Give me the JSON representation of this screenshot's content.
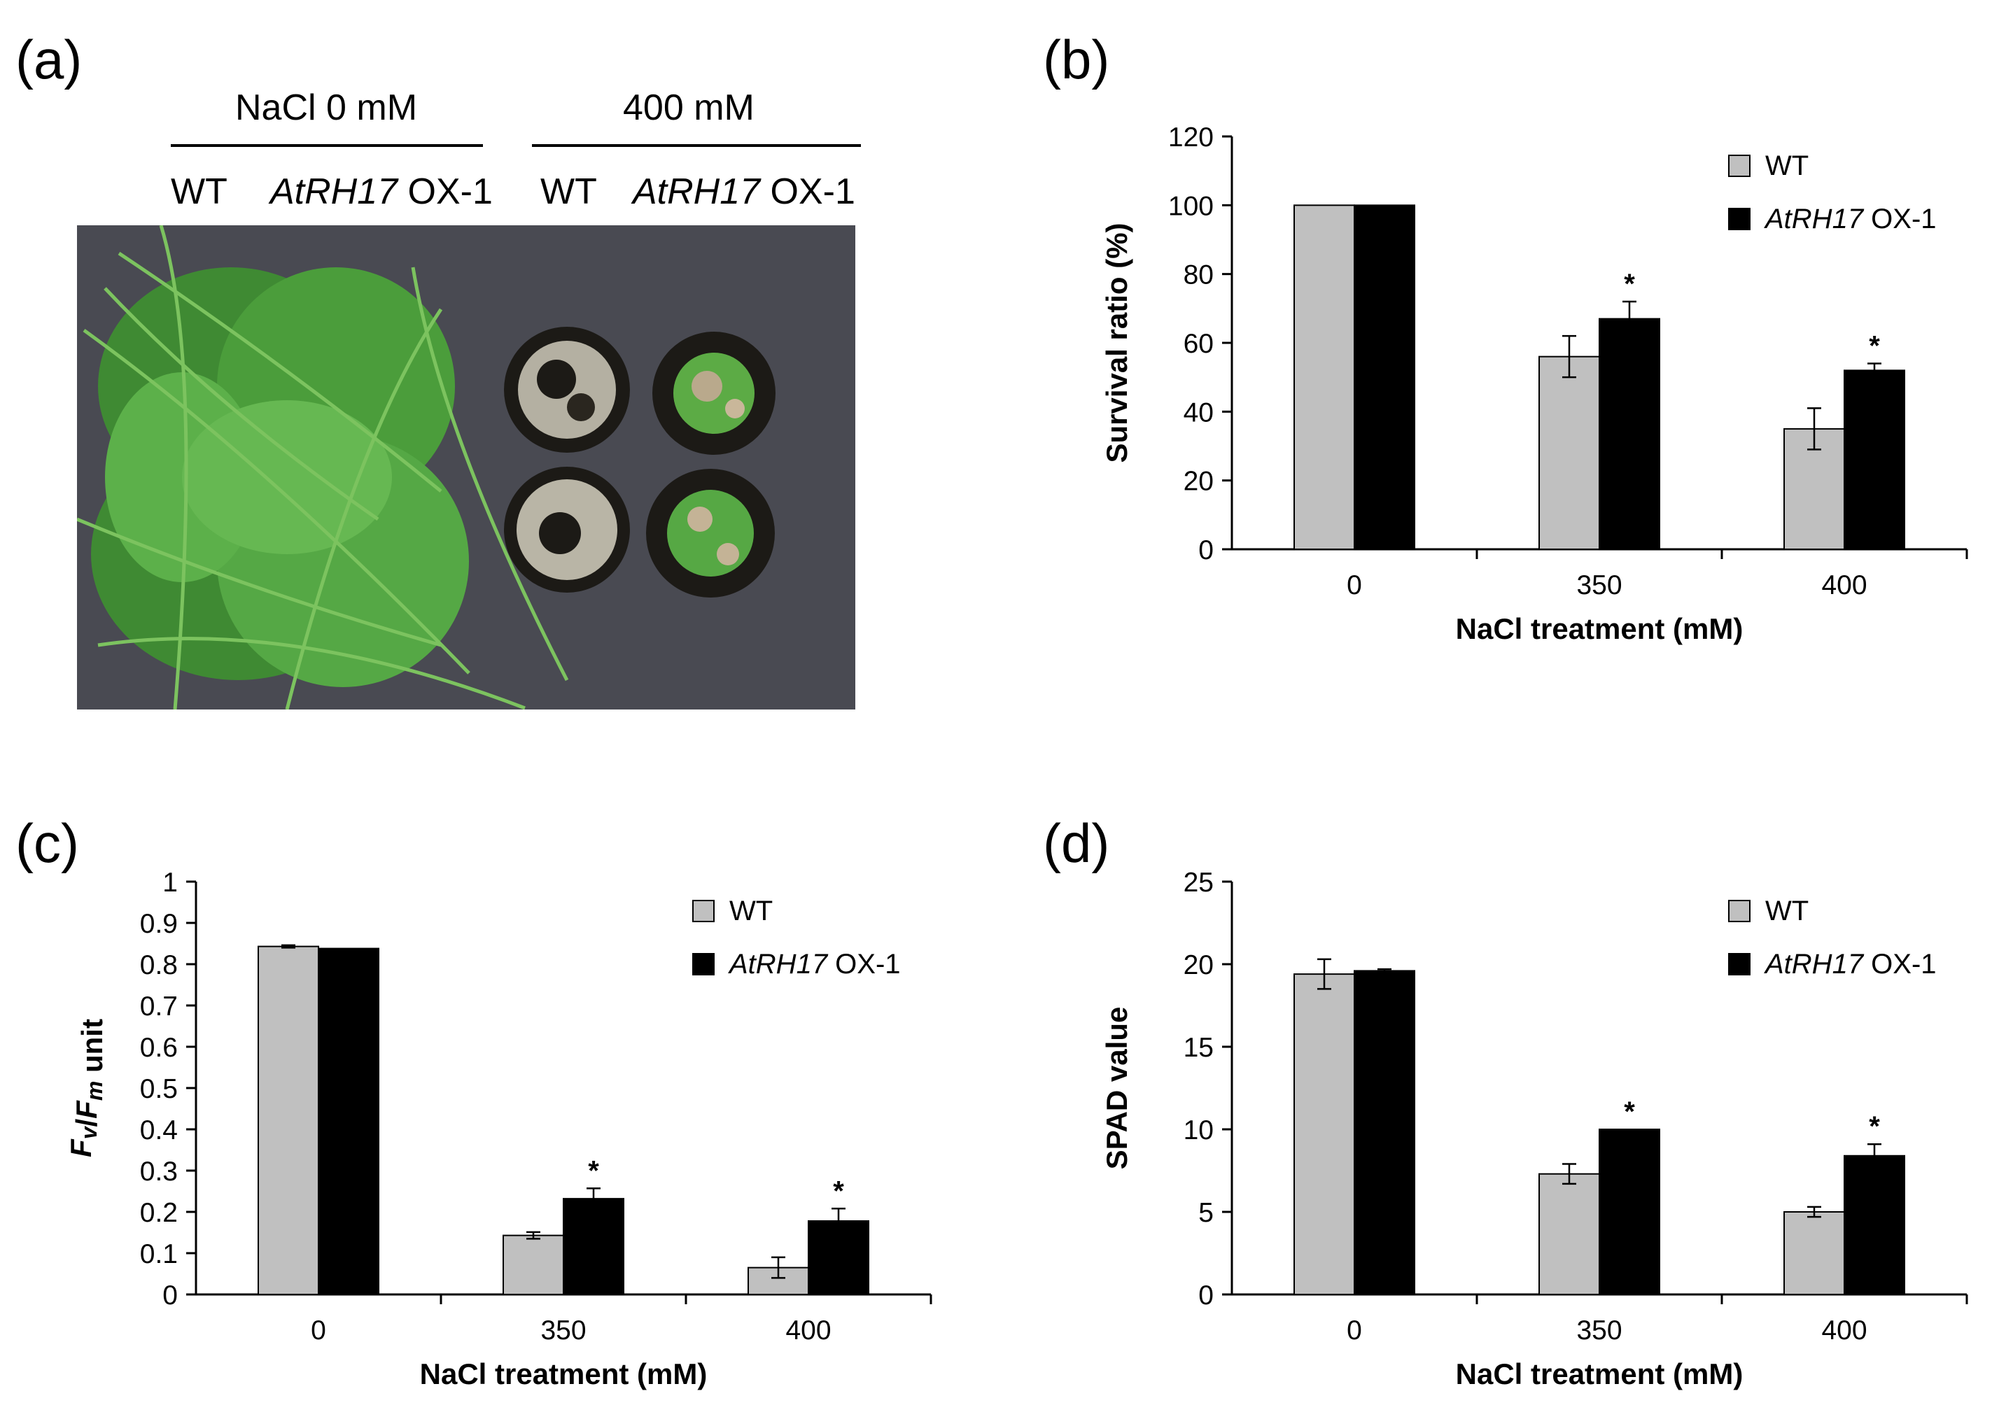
{
  "panels": {
    "a": {
      "label": "(a)",
      "group_left": "NaCl 0 mM",
      "group_right": "400 mM",
      "col_wt": "WT",
      "col_ox_italic": "AtRH17",
      "col_ox_suffix": " OX-1"
    },
    "b": {
      "label": "(b)"
    },
    "c": {
      "label": "(c)"
    },
    "d": {
      "label": "(d)"
    }
  },
  "colors": {
    "wt": "#c0c0c0",
    "ox": "#000000",
    "photo_bg": "#494a52",
    "plant": "#4d9a3a"
  },
  "chart_data": [
    {
      "id": "b",
      "type": "bar",
      "categories": [
        "0",
        "350",
        "400"
      ],
      "series": [
        {
          "name": "WT",
          "values": [
            100,
            56,
            35
          ],
          "errors": [
            0,
            6,
            6
          ]
        },
        {
          "name": "AtRH17 OX-1",
          "values": [
            100,
            67,
            52
          ],
          "errors": [
            0,
            5,
            2
          ]
        }
      ],
      "significance": [
        "",
        "*",
        "*"
      ],
      "xlabel": "NaCl treatment (mM)",
      "ylabel": "Survival ratio (%)",
      "ylim": [
        0,
        120
      ],
      "yticks": [
        0,
        20,
        40,
        60,
        80,
        100,
        120
      ],
      "ytick_labels": [
        "0",
        "20",
        "40",
        "60",
        "80",
        "100",
        "120"
      ],
      "legend_position": "top-right"
    },
    {
      "id": "c",
      "type": "bar",
      "categories": [
        "0",
        "350",
        "400"
      ],
      "series": [
        {
          "name": "WT",
          "values": [
            0.843,
            0.143,
            0.065
          ],
          "errors": [
            0.003,
            0.008,
            0.025
          ]
        },
        {
          "name": "AtRH17 OX-1",
          "values": [
            0.838,
            0.232,
            0.178
          ],
          "errors": [
            0,
            0.025,
            0.03
          ]
        }
      ],
      "significance": [
        "",
        "*",
        "*"
      ],
      "xlabel": "NaCl treatment (mM)",
      "ylabel": "Fv/Fm unit",
      "ylim": [
        0,
        1
      ],
      "yticks": [
        0,
        0.1,
        0.2,
        0.3,
        0.4,
        0.5,
        0.6,
        0.7,
        0.8,
        0.9,
        1
      ],
      "ytick_labels": [
        "0",
        "0.1",
        "0.2",
        "0.3",
        "0.4",
        "0.5",
        "0.6",
        "0.7",
        "0.8",
        "0.9",
        "1"
      ],
      "legend_position": "top-right"
    },
    {
      "id": "d",
      "type": "bar",
      "categories": [
        "0",
        "350",
        "400"
      ],
      "series": [
        {
          "name": "WT",
          "values": [
            19.4,
            7.3,
            5.0
          ],
          "errors": [
            0.9,
            0.6,
            0.3
          ]
        },
        {
          "name": "AtRH17 OX-1",
          "values": [
            19.6,
            10.0,
            8.4
          ],
          "errors": [
            0.1,
            0,
            0.7
          ]
        }
      ],
      "significance": [
        "",
        "*",
        "*"
      ],
      "xlabel": "NaCl treatment (mM)",
      "ylabel": "SPAD value",
      "ylim": [
        0,
        25
      ],
      "yticks": [
        0,
        5,
        10,
        15,
        20,
        25
      ],
      "ytick_labels": [
        "0",
        "5",
        "10",
        "15",
        "20",
        "25"
      ],
      "legend_position": "top-right"
    }
  ]
}
